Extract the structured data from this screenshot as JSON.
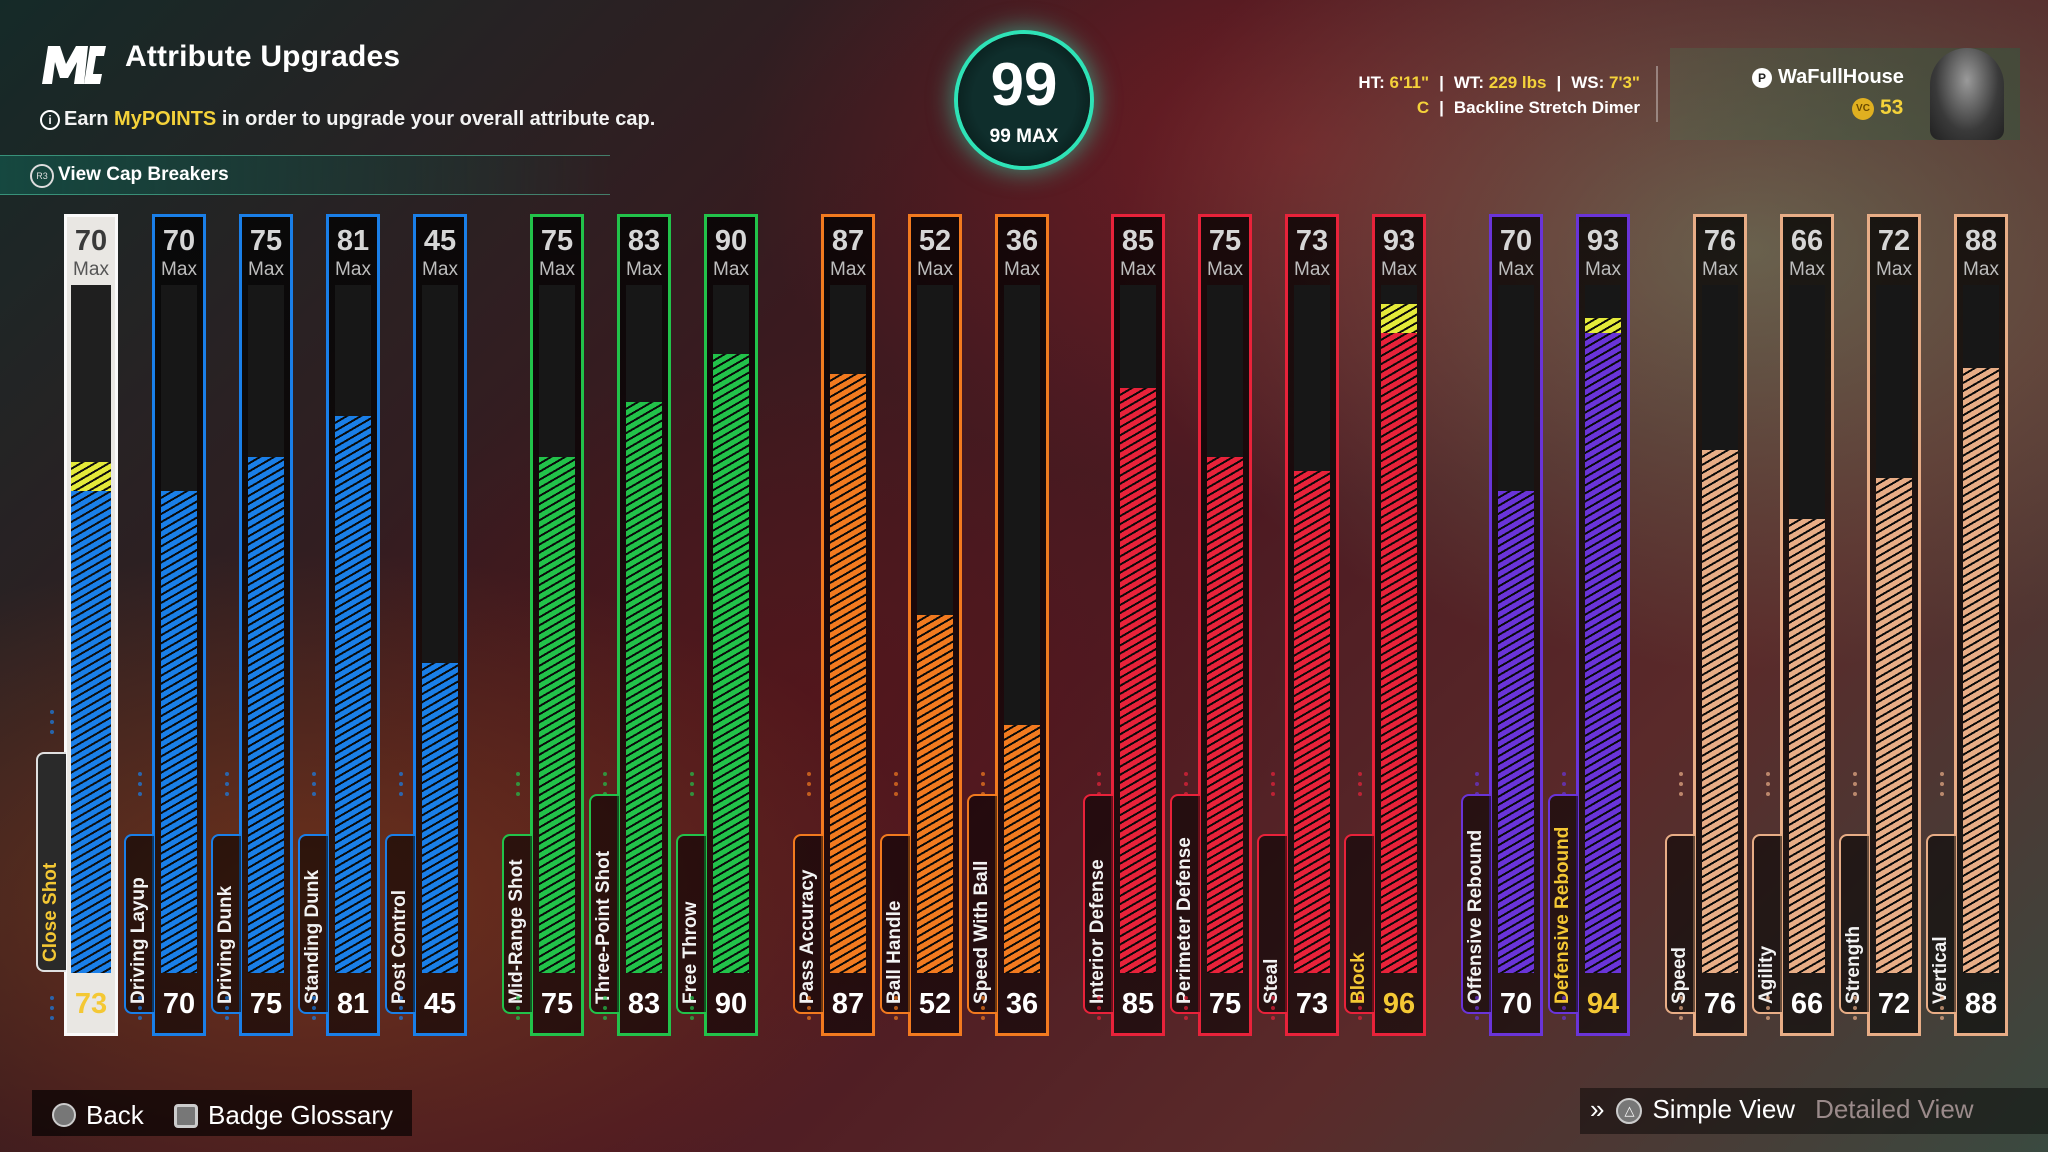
{
  "header": {
    "title": "Attribute Upgrades",
    "subtitle_pre": "Earn",
    "subtitle_highlight": "MyPOINTS",
    "subtitle_post": "in order to upgrade your overall attribute cap.",
    "cap_breakers_label": "View Cap Breakers",
    "cap_breakers_button": "R3"
  },
  "overall": {
    "value": "99",
    "max_label": "99 MAX"
  },
  "player": {
    "ht_label": "HT:",
    "ht": "6'11\"",
    "wt_label": "WT:",
    "wt": "229 lbs",
    "ws_label": "WS:",
    "ws": "7'3\"",
    "position": "C",
    "archetype": "Backline Stretch Dimer"
  },
  "user": {
    "name": "WaFullHouse",
    "vc": "53",
    "vc_icon": "VC"
  },
  "colors": {
    "inside": "#1a7fe8",
    "shooting": "#22c24a",
    "playmaking": "#f27a1f",
    "defense": "#e8223a",
    "rebounding": "#6a34d8",
    "physicals": "#e8ad86",
    "boost": "#e4ea3a",
    "selected_text": "#f4c834"
  },
  "max_label": "Max",
  "attributes": [
    {
      "name": "Close Shot",
      "max": "70",
      "current": "73",
      "group": "inside",
      "cur": 70,
      "boost": 73,
      "selected": true
    },
    {
      "name": "Driving Layup",
      "max": "70",
      "current": "70",
      "group": "inside",
      "cur": 70
    },
    {
      "name": "Driving Dunk",
      "max": "75",
      "current": "75",
      "group": "inside",
      "cur": 75
    },
    {
      "name": "Standing Dunk",
      "max": "81",
      "current": "81",
      "group": "inside",
      "cur": 81
    },
    {
      "name": "Post Control",
      "max": "45",
      "current": "45",
      "group": "inside",
      "cur": 45
    },
    {
      "name": "Mid-Range Shot",
      "max": "75",
      "current": "75",
      "group": "shooting",
      "cur": 75
    },
    {
      "name": "Three-Point Shot",
      "max": "83",
      "current": "83",
      "group": "shooting",
      "cur": 83
    },
    {
      "name": "Free Throw",
      "max": "90",
      "current": "90",
      "group": "shooting",
      "cur": 90
    },
    {
      "name": "Pass Accuracy",
      "max": "87",
      "current": "87",
      "group": "playmaking",
      "cur": 87
    },
    {
      "name": "Ball Handle",
      "max": "52",
      "current": "52",
      "group": "playmaking",
      "cur": 52
    },
    {
      "name": "Speed With Ball",
      "max": "36",
      "current": "36",
      "group": "playmaking",
      "cur": 36
    },
    {
      "name": "Interior Defense",
      "max": "85",
      "current": "85",
      "group": "defense",
      "cur": 85
    },
    {
      "name": "Perimeter Defense",
      "max": "75",
      "current": "75",
      "group": "defense",
      "cur": 75
    },
    {
      "name": "Steal",
      "max": "73",
      "current": "73",
      "group": "defense",
      "cur": 73
    },
    {
      "name": "Block",
      "max": "93",
      "current": "96",
      "group": "defense",
      "cur": 93,
      "boost": 96,
      "highlight": true
    },
    {
      "name": "Offensive Rebound",
      "max": "70",
      "current": "70",
      "group": "rebounding",
      "cur": 70
    },
    {
      "name": "Defensive Rebound",
      "max": "93",
      "current": "94",
      "group": "rebounding",
      "cur": 93,
      "boost": 94,
      "highlight": true
    },
    {
      "name": "Speed",
      "max": "76",
      "current": "76",
      "group": "physicals",
      "cur": 76
    },
    {
      "name": "Agility",
      "max": "66",
      "current": "66",
      "group": "physicals",
      "cur": 66
    },
    {
      "name": "Strength",
      "max": "72",
      "current": "72",
      "group": "physicals",
      "cur": 72
    },
    {
      "name": "Vertical",
      "max": "88",
      "current": "88",
      "group": "physicals",
      "cur": 88
    }
  ],
  "footer": {
    "back": "Back",
    "badge_glossary": "Badge Glossary",
    "simple_view": "Simple View",
    "detailed_view": "Detailed View"
  }
}
